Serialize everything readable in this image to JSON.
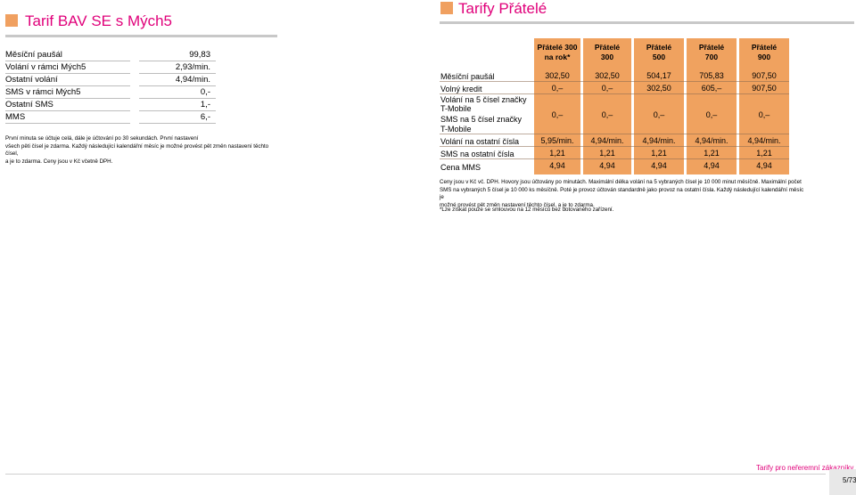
{
  "left": {
    "title": "Tarif BAV SE s Mých5",
    "rows": [
      {
        "label": "Měsíční paušál",
        "value": "99,83"
      },
      {
        "label": "Volání v rámci Mých5",
        "value": "2,93/min."
      },
      {
        "label": "Ostatní volání",
        "value": "4,94/min."
      },
      {
        "label": "SMS v rámci Mých5",
        "value": "0,-"
      },
      {
        "label": "Ostatní SMS",
        "value": "1,-"
      },
      {
        "label": "MMS",
        "value": "6,-"
      }
    ],
    "note_lines": [
      "První minuta se účtuje celá, dále je účtování po 30 sekundách. První nastavení",
      "všech pěti čísel je zdarma. Každý následující kalendářní měsíc je možné provést pět změn nastavení těchto čísel,",
      "a je to zdarma. Ceny jsou v Kč včetně DPH."
    ]
  },
  "right": {
    "title": "Tarify Přátelé",
    "columns": [
      {
        "line1": "Přátelé 300",
        "line2": "na rok*"
      },
      {
        "line1": "Přátelé",
        "line2": "300"
      },
      {
        "line1": "Přátelé",
        "line2": "500"
      },
      {
        "line1": "Přátelé",
        "line2": "700"
      },
      {
        "line1": "Přátelé",
        "line2": "900"
      }
    ],
    "row_labels": {
      "monthly": "Měsíční paušál",
      "credit": "Volný kredit",
      "calls5_a": "Volání na 5 čísel značky",
      "calls5_b": "T-Mobile",
      "sms5_a": "SMS na 5 čísel značky",
      "sms5_b": "T-Mobile",
      "calls_other": "Volání na ostatní čísla",
      "sms_other": "SMS na ostatní čísla",
      "mms": "Cena MMS"
    },
    "values": {
      "monthly": [
        "302,50",
        "302,50",
        "504,17",
        "705,83",
        "907,50"
      ],
      "credit": [
        "0,–",
        "0,–",
        "302,50",
        "605,–",
        "907,50"
      ],
      "five": [
        "0,–",
        "0,–",
        "0,–",
        "0,–",
        "0,–"
      ],
      "calls_other": [
        "5,95/min.",
        "4,94/min.",
        "4,94/min.",
        "4,94/min.",
        "4,94/min."
      ],
      "sms_other": [
        "1,21",
        "1,21",
        "1,21",
        "1,21",
        "1,21"
      ],
      "mms": [
        "4,94",
        "4,94",
        "4,94",
        "4,94",
        "4,94"
      ]
    },
    "note_lines": [
      "Ceny jsou v Kč vč. DPH. Hovory jsou účtovány po minutách. Maximální délka volání na 5 vybraných čísel je 10 000 minut měsíčně. Maximální počet",
      "SMS na vybraných 5 čísel je 10 000 ks měsíčně. Poté je provoz účtován standardně jako provoz na ostatní čísla. Každý následující kalendářní měsíc je",
      "možné provést pět změn nastavení těchto čísel, a je to zdarma."
    ],
    "footnote": "*Lze získat pouze se smlouvou na 12 měsíců bez dotovaného zařízení."
  },
  "footer": {
    "link": "Tarify pro neřeremní zákazníky",
    "page": "5/73"
  },
  "colors": {
    "accent": "#e0007a",
    "orange": "#f0a25f",
    "square": "#f0a060"
  }
}
